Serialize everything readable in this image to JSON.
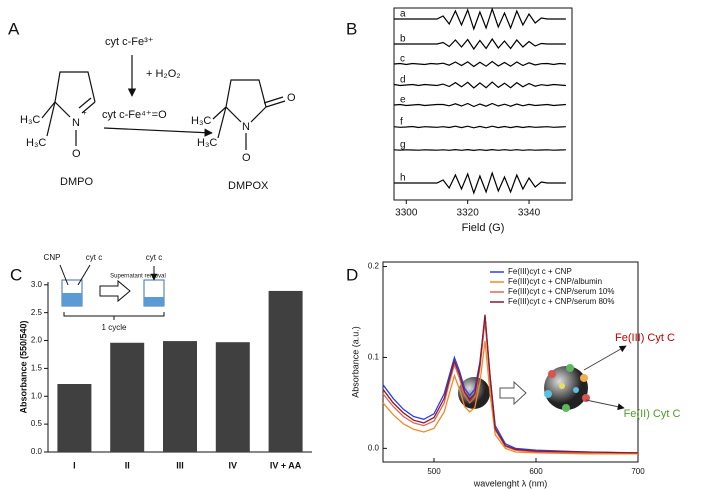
{
  "panel_labels": [
    "A",
    "B",
    "C",
    "D"
  ],
  "scheme": {
    "reagent_top": "cyt c-Fe³⁺",
    "reagent_added": "+ H₂O₂",
    "intermediate": "cyt c-Fe⁴⁺=O",
    "dmpo": {
      "methyl_1": "H₃C",
      "methyl_2": "H₃C",
      "nitrogen": "N",
      "charge": "+",
      "oxygen": "O",
      "name": "DMPO"
    },
    "dmpox": {
      "methyl_1": "H₃C",
      "methyl_2": "H₃C",
      "nitrogen": "N",
      "oxygen": "O",
      "carbonyl_oxygen": "O",
      "name": "DMPOX"
    }
  },
  "chart_data": [
    {
      "type": "spectra",
      "xlabel": "Field (G)",
      "xlim": [
        3296,
        3354
      ],
      "xticks": [
        3300,
        3320,
        3340
      ],
      "x": [
        3296,
        3298,
        3300,
        3302,
        3304,
        3306,
        3308,
        3310,
        3312,
        3314,
        3316,
        3318,
        3320,
        3322,
        3324,
        3326,
        3328,
        3330,
        3332,
        3334,
        3336,
        3338,
        3340,
        3342,
        3344,
        3346,
        3348,
        3350,
        3352
      ],
      "series": [
        {
          "name": "a",
          "color": "#000000",
          "values": [
            0,
            0,
            0,
            0,
            0,
            0,
            0,
            0,
            0.3,
            -0.5,
            0.8,
            -0.6,
            0.9,
            -1,
            0.7,
            -0.9,
            1,
            -0.8,
            0.6,
            -0.9,
            0.8,
            -0.6,
            0.5,
            -0.4,
            0.1,
            0,
            0,
            0,
            0
          ]
        },
        {
          "name": "b",
          "color": "#000000",
          "values": [
            0,
            0,
            0,
            0,
            0,
            0,
            0,
            0,
            0.15,
            -0.25,
            0.4,
            -0.3,
            0.45,
            -0.5,
            0.35,
            -0.45,
            0.5,
            -0.4,
            0.3,
            -0.45,
            0.4,
            -0.3,
            0.25,
            -0.2,
            0.05,
            0,
            0,
            0,
            0
          ]
        },
        {
          "name": "c",
          "color": "#000000",
          "values": [
            0,
            0.05,
            -0.05,
            0.05,
            0,
            -0.05,
            0.05,
            0,
            0.08,
            -0.12,
            0.2,
            -0.15,
            0.22,
            -0.25,
            0.18,
            -0.22,
            0.25,
            -0.2,
            0.15,
            -0.22,
            0.2,
            -0.15,
            0.12,
            -0.1,
            0.03,
            0.05,
            -0.05,
            0.05,
            0
          ]
        },
        {
          "name": "d",
          "color": "#000000",
          "values": [
            0.05,
            -0.05,
            0,
            0.05,
            -0.05,
            0.05,
            0,
            -0.05,
            0.09,
            -0.15,
            0.24,
            -0.18,
            0.27,
            -0.3,
            0.21,
            -0.27,
            0.3,
            -0.24,
            0.18,
            -0.27,
            0.24,
            -0.18,
            0.15,
            -0.12,
            0.03,
            -0.05,
            0.05,
            0,
            -0.05
          ]
        },
        {
          "name": "e",
          "color": "#000000",
          "values": [
            0,
            0.05,
            -0.05,
            0,
            0.05,
            -0.05,
            0,
            0.05,
            0.05,
            -0.08,
            0.12,
            -0.1,
            0.15,
            -0.15,
            0.1,
            -0.12,
            0.15,
            -0.1,
            0.08,
            -0.12,
            0.1,
            -0.08,
            0.06,
            -0.05,
            0,
            0.05,
            -0.05,
            0,
            0.05
          ]
        },
        {
          "name": "f",
          "color": "#000000",
          "values": [
            0.03,
            -0.03,
            0,
            0.05,
            -0.05,
            0.03,
            0,
            -0.03,
            0.03,
            -0.05,
            0.08,
            -0.06,
            0.08,
            -0.08,
            0.06,
            -0.08,
            0.08,
            -0.06,
            0.05,
            -0.06,
            0.05,
            -0.05,
            0.04,
            -0.03,
            0,
            0.03,
            -0.03,
            0,
            0.03
          ]
        },
        {
          "name": "g",
          "color": "#000000",
          "values": [
            0.02,
            -0.02,
            0.02,
            0,
            -0.02,
            0.02,
            0,
            -0.02,
            0.02,
            -0.03,
            0.04,
            -0.03,
            0.04,
            -0.04,
            0.03,
            -0.04,
            0.04,
            -0.03,
            0.03,
            -0.03,
            0.03,
            -0.03,
            0.02,
            -0.02,
            0,
            0.02,
            -0.02,
            0,
            0.02
          ]
        },
        {
          "name": "h",
          "color": "#000000",
          "values": [
            0,
            0,
            0,
            0,
            0,
            0,
            0,
            0,
            0.3,
            -0.5,
            0.8,
            -0.6,
            0.9,
            -1,
            0.7,
            -0.9,
            1,
            -0.8,
            0.6,
            -0.9,
            0.8,
            -0.6,
            0.5,
            -0.4,
            0.1,
            0,
            0,
            0,
            0
          ]
        }
      ]
    },
    {
      "type": "bar",
      "ylabel": "Absorbance (550/540)",
      "color": "#404040",
      "categories": [
        "I",
        "II",
        "III",
        "IV",
        "IV + AA"
      ],
      "values": [
        1.22,
        1.96,
        1.99,
        1.97,
        2.89
      ],
      "ylim": [
        0,
        3.05
      ],
      "yticks": [
        {
          "value": 0,
          "label": "0.0"
        },
        0.5,
        {
          "value": 1,
          "label": "1.0"
        },
        1.5,
        {
          "value": 2,
          "label": "2.0"
        },
        2.5,
        {
          "value": 3,
          "label": "3.0"
        }
      ],
      "annotations": [
        "CNP",
        "cyt c",
        "Supernatant removal",
        "cyt c",
        "1 cycle"
      ]
    },
    {
      "type": "line",
      "xlabel": "wavelenght λ (nm)",
      "ylabel": "Absorbance (a.u.)",
      "legend": "top-right",
      "xlim": [
        450,
        700
      ],
      "xticks": [
        500,
        600,
        700
      ],
      "ylim": [
        -0.015,
        0.205
      ],
      "yticks": [
        {
          "value": 0,
          "label": "0.0"
        },
        0.1,
        0.2
      ],
      "x": [
        450,
        460,
        470,
        480,
        490,
        500,
        510,
        515,
        520,
        525,
        530,
        535,
        540,
        545,
        550,
        555,
        560,
        570,
        580,
        600,
        650,
        700
      ],
      "series": [
        {
          "name": "Fe(III)cyt c + CNP",
          "color": "#2b3ff0",
          "values": [
            0.07,
            0.055,
            0.043,
            0.035,
            0.032,
            0.038,
            0.06,
            0.08,
            0.1,
            0.085,
            0.066,
            0.058,
            0.065,
            0.095,
            0.145,
            0.08,
            0.025,
            0.005,
            0.0,
            -0.002,
            -0.004,
            -0.005
          ]
        },
        {
          "name": "Fe(III)cyt c + CNP/albumin",
          "color": "#f08a24",
          "values": [
            0.05,
            0.037,
            0.027,
            0.021,
            0.018,
            0.022,
            0.04,
            0.06,
            0.08,
            0.065,
            0.046,
            0.04,
            0.045,
            0.072,
            0.118,
            0.06,
            0.015,
            0.0,
            -0.004,
            -0.005,
            -0.006,
            -0.006
          ]
        },
        {
          "name": "Fe(III)cyt c + CNP/serum 10%",
          "color": "#e0655a",
          "values": [
            0.06,
            0.046,
            0.035,
            0.028,
            0.025,
            0.03,
            0.05,
            0.072,
            0.092,
            0.077,
            0.058,
            0.05,
            0.056,
            0.088,
            0.14,
            0.075,
            0.02,
            0.002,
            -0.002,
            -0.004,
            -0.005,
            -0.005
          ]
        },
        {
          "name": "Fe(III)cyt c + CNP/serum 80%",
          "color": "#8b1a2b",
          "values": [
            0.065,
            0.05,
            0.039,
            0.031,
            0.028,
            0.034,
            0.055,
            0.076,
            0.096,
            0.081,
            0.062,
            0.054,
            0.06,
            0.092,
            0.147,
            0.078,
            0.022,
            0.003,
            -0.001,
            -0.003,
            -0.004,
            -0.005
          ]
        }
      ],
      "annotations": [
        {
          "text": "Fe(III) Cyt C",
          "color": "#c00000"
        },
        {
          "text": "Fe(II) Cyt C",
          "color": "#4e9a2a"
        }
      ]
    }
  ]
}
